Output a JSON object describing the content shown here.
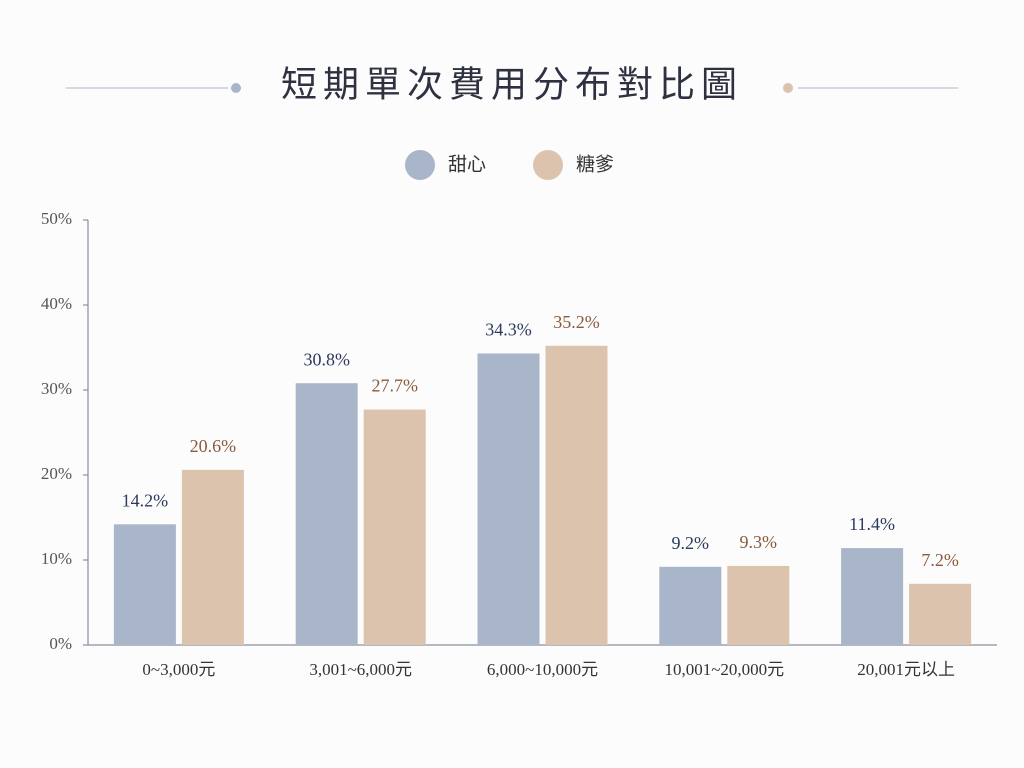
{
  "chart_data": {
    "type": "bar",
    "title": "短期單次費用分布對比圖",
    "categories": [
      "0~3,000元",
      "3,001~6,000元",
      "6,000~10,000元",
      "10,001~20,000元",
      "20,001元以上"
    ],
    "series": [
      {
        "name": "甜心",
        "color": "#a9b6c9",
        "label_color": "#2c3a5c",
        "values": [
          14.2,
          30.8,
          34.3,
          9.2,
          11.4
        ],
        "value_labels": [
          "14.2%",
          "30.8%",
          "34.3%",
          "9.2%",
          "11.4%"
        ]
      },
      {
        "name": "糖爹",
        "color": "#dcc3ae",
        "label_color": "#8a5a3c",
        "values": [
          20.6,
          27.7,
          35.2,
          9.3,
          7.2
        ],
        "value_labels": [
          "20.6%",
          "27.7%",
          "35.2%",
          "9.3%",
          "7.2%"
        ]
      }
    ],
    "ylim": [
      0,
      50
    ],
    "yticks": [
      {
        "value": 0,
        "label": "0%"
      },
      {
        "value": 10,
        "label": "10%"
      },
      {
        "value": 20,
        "label": "20%"
      },
      {
        "value": 30,
        "label": "30%"
      },
      {
        "value": 40,
        "label": "40%"
      },
      {
        "value": 50,
        "label": "50%"
      }
    ],
    "grid": false
  }
}
